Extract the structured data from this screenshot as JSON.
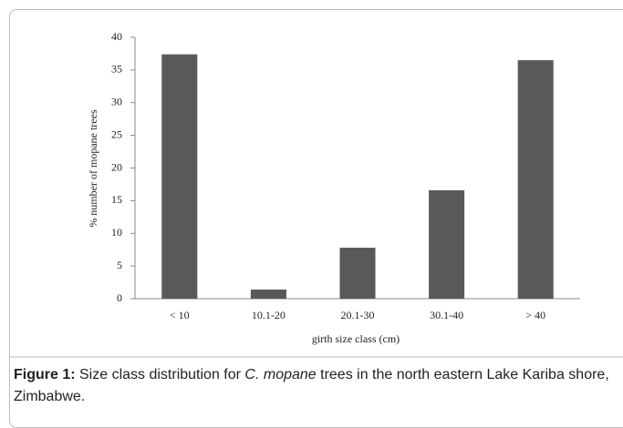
{
  "chart_data": {
    "type": "bar",
    "categories": [
      "< 10",
      "10.1-20",
      "20.1-30",
      "30.1-40",
      "> 40"
    ],
    "values": [
      37.4,
      1.4,
      7.8,
      16.6,
      36.5
    ],
    "color": "#595959",
    "ylim": [
      0,
      40
    ],
    "yticks": [
      0,
      5,
      10,
      15,
      20,
      25,
      30,
      35,
      40
    ],
    "grid": false,
    "x_label": "girth size class (cm)",
    "y_label": "% number of mopane trees"
  },
  "caption": {
    "label": "Figure 1:",
    "text_before": " Size class distribution for ",
    "species": "C. mopane",
    "text_after": " trees in the north eastern Lake Kariba shore, Zimbabwe."
  }
}
